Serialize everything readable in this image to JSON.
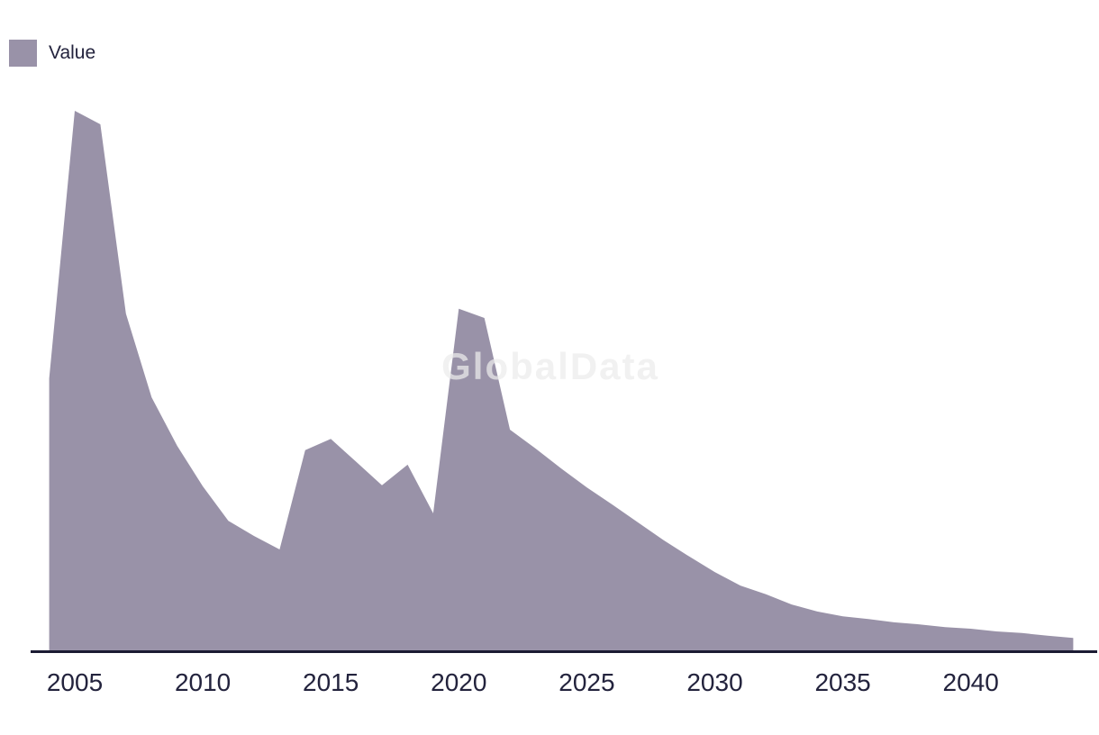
{
  "chart": {
    "legend": {
      "label": "Value",
      "swatch_color": "#9992a8"
    },
    "watermark_text": "GlobalData",
    "colors": {
      "area_fill": "#9992a8",
      "axis_line": "#1b1b33",
      "tick_text": "#23233d",
      "legend_text": "#23233d",
      "watermark": "#ededed",
      "background": "#ffffff"
    }
  },
  "chart_data": {
    "type": "area",
    "title": "",
    "xlabel": "",
    "ylabel": "",
    "legend_position": "top-left",
    "grid": false,
    "y_axis_shown": false,
    "value_units": "relative units (peak = 100); no y-axis labels are shown in the image",
    "x_range": [
      2004,
      2044
    ],
    "ylim": [
      0,
      105
    ],
    "x_ticks": [
      "2005",
      "2010",
      "2015",
      "2020",
      "2025",
      "2030",
      "2035",
      "2040"
    ],
    "x_tick_years": [
      2005,
      2010,
      2015,
      2020,
      2025,
      2030,
      2035,
      2040
    ],
    "series": [
      {
        "name": "Value",
        "x": [
          2004,
          2005,
          2006,
          2007,
          2008,
          2009,
          2010,
          2011,
          2012,
          2013,
          2014,
          2015,
          2016,
          2017,
          2018,
          2019,
          2020,
          2021,
          2022,
          2023,
          2024,
          2025,
          2026,
          2027,
          2028,
          2029,
          2030,
          2031,
          2032,
          2033,
          2034,
          2035,
          2036,
          2037,
          2038,
          2039,
          2040,
          2041,
          2042,
          2043,
          2044
        ],
        "values": [
          50.4,
          100,
          97.5,
          62.4,
          46.9,
          37.9,
          30.4,
          24.0,
          21.2,
          18.7,
          37.1,
          39.2,
          34.9,
          30.6,
          34.4,
          25.4,
          63.3,
          61.6,
          40.9,
          37.4,
          33.7,
          30.2,
          27.0,
          23.7,
          20.4,
          17.4,
          14.5,
          12.0,
          10.4,
          8.5,
          7.2,
          6.3,
          5.8,
          5.2,
          4.8,
          4.3,
          4.0,
          3.5,
          3.2,
          2.7,
          2.3
        ]
      }
    ]
  }
}
